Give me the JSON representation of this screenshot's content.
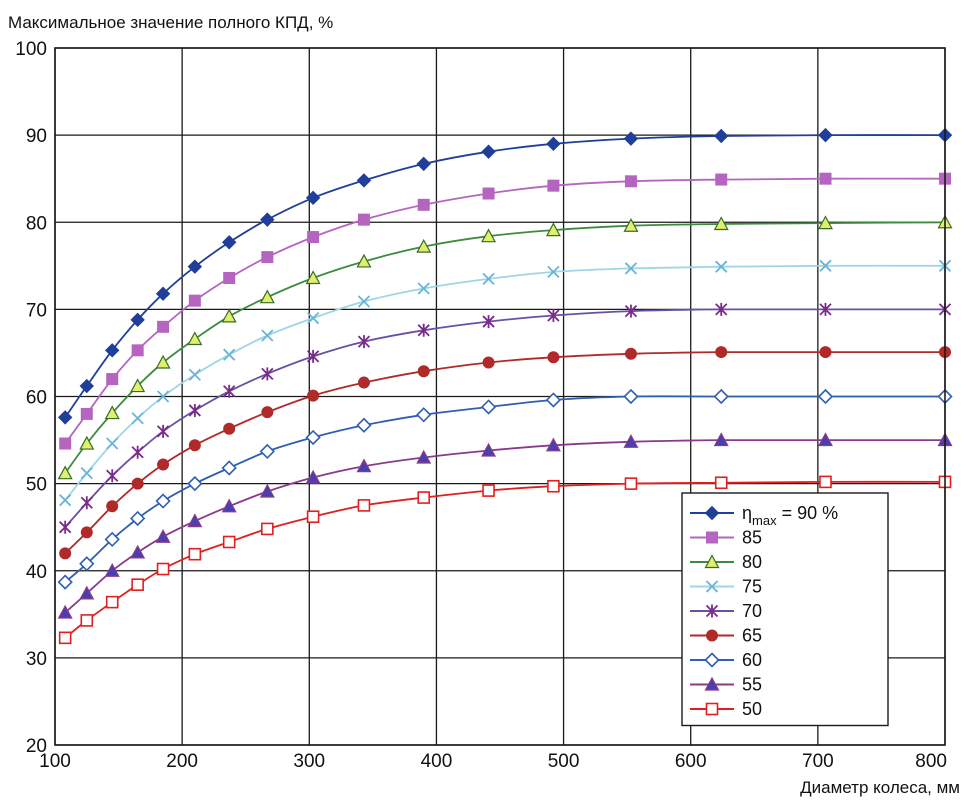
{
  "chart_data": {
    "type": "line",
    "title": "",
    "ylabel": "Максимальное значение полного КПД, %",
    "xlabel": "Диаметр колеса, мм",
    "xlim": [
      100,
      800
    ],
    "ylim": [
      20,
      100
    ],
    "xticks": [
      100,
      200,
      300,
      400,
      500,
      600,
      700,
      800
    ],
    "yticks": [
      20,
      30,
      40,
      50,
      60,
      70,
      80,
      90,
      100
    ],
    "grid": true,
    "legend_position": "bottom-right",
    "legend_prefix": "η",
    "legend_subscript": "max",
    "legend_first_suffix": " = 90 %",
    "x": [
      108,
      125,
      145,
      165,
      185,
      210,
      237,
      267,
      303,
      343,
      390,
      441,
      492,
      553,
      624,
      706,
      800
    ],
    "series": [
      {
        "name": "90",
        "marker": "diamond-filled",
        "color": "#1f3f9a",
        "values": [
          57.6,
          61.2,
          65.3,
          68.8,
          71.8,
          74.9,
          77.7,
          80.3,
          82.8,
          84.8,
          86.7,
          88.1,
          89.0,
          89.6,
          89.9,
          90.0,
          90.0
        ]
      },
      {
        "name": "85",
        "marker": "square-filled",
        "color": "#b565c0",
        "values": [
          54.6,
          58.0,
          62.0,
          65.3,
          68.0,
          71.0,
          73.6,
          76.0,
          78.3,
          80.3,
          82.0,
          83.3,
          84.2,
          84.7,
          84.9,
          85.0,
          85.0
        ]
      },
      {
        "name": "80",
        "marker": "triangle-open",
        "color": "#3d8c3d",
        "values": [
          51.2,
          54.6,
          58.1,
          61.2,
          63.9,
          66.6,
          69.2,
          71.4,
          73.6,
          75.5,
          77.2,
          78.4,
          79.1,
          79.6,
          79.8,
          79.9,
          80.0
        ]
      },
      {
        "name": "75",
        "marker": "x",
        "color": "#9fd6e6",
        "values": [
          48.1,
          51.2,
          54.6,
          57.5,
          60.0,
          62.5,
          64.8,
          67.0,
          69.0,
          70.9,
          72.4,
          73.5,
          74.3,
          74.7,
          74.9,
          75.0,
          75.0
        ]
      },
      {
        "name": "70",
        "marker": "star",
        "color": "#6a4fa8",
        "values": [
          45.0,
          47.8,
          50.9,
          53.6,
          56.0,
          58.4,
          60.6,
          62.6,
          64.6,
          66.3,
          67.6,
          68.6,
          69.3,
          69.8,
          70.0,
          70.0,
          70.0
        ]
      },
      {
        "name": "65",
        "marker": "circle-filled",
        "color": "#b02a2a",
        "values": [
          42.0,
          44.4,
          47.4,
          50.0,
          52.2,
          54.4,
          56.3,
          58.2,
          60.1,
          61.6,
          62.9,
          63.9,
          64.5,
          64.9,
          65.1,
          65.1,
          65.1
        ]
      },
      {
        "name": "60",
        "marker": "diamond-open",
        "color": "#2f5fae",
        "values": [
          38.7,
          40.8,
          43.6,
          46.0,
          48.0,
          50.0,
          51.8,
          53.7,
          55.3,
          56.7,
          57.9,
          58.8,
          59.6,
          60.0,
          60.0,
          60.0,
          60.0
        ]
      },
      {
        "name": "55",
        "marker": "triangle-filled",
        "color": "#8a3a8a",
        "values": [
          35.2,
          37.4,
          40.0,
          42.1,
          43.9,
          45.7,
          47.4,
          49.1,
          50.7,
          52.0,
          53.0,
          53.8,
          54.4,
          54.8,
          55.0,
          55.0,
          55.0
        ]
      },
      {
        "name": "50",
        "marker": "square-open",
        "color": "#e02020",
        "values": [
          32.3,
          34.3,
          36.4,
          38.4,
          40.2,
          41.9,
          43.3,
          44.8,
          46.2,
          47.5,
          48.4,
          49.2,
          49.7,
          50.0,
          50.1,
          50.2,
          50.2
        ]
      }
    ]
  }
}
